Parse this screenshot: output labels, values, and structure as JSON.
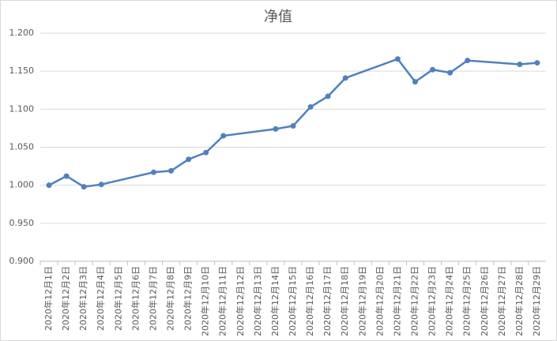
{
  "chart_data": {
    "type": "line",
    "title": "净值",
    "xticks": [
      "2020年12月1日",
      "2020年12月2日",
      "2020年12月3日",
      "2020年12月4日",
      "2020年12月5日",
      "2020年12月6日",
      "2020年12月7日",
      "2020年12月8日",
      "2020年12月9日",
      "2020年12月10日",
      "2020年12月11日",
      "2020年12月12日",
      "2020年12月13日",
      "2020年12月14日",
      "2020年12月15日",
      "2020年12月16日",
      "2020年12月17日",
      "2020年12月18日",
      "2020年12月19日",
      "2020年12月20日",
      "2020年12月21日",
      "2020年12月22日",
      "2020年12月23日",
      "2020年12月24日",
      "2020年12月25日",
      "2020年12月26日",
      "2020年12月27日",
      "2020年12月28日",
      "2020年12月29日"
    ],
    "x": [
      "2020年12月1日",
      "2020年12月2日",
      "2020年12月3日",
      "2020年12月4日",
      "2020年12月7日",
      "2020年12月8日",
      "2020年12月9日",
      "2020年12月10日",
      "2020年12月11日",
      "2020年12月14日",
      "2020年12月15日",
      "2020年12月16日",
      "2020年12月17日",
      "2020年12月18日",
      "2020年12月21日",
      "2020年12月22日",
      "2020年12月23日",
      "2020年12月24日",
      "2020年12月25日",
      "2020年12月28日",
      "2020年12月29日"
    ],
    "values": [
      1.0,
      1.012,
      0.998,
      1.001,
      1.017,
      1.019,
      1.034,
      1.043,
      1.065,
      1.074,
      1.078,
      1.103,
      1.117,
      1.141,
      1.166,
      1.136,
      1.152,
      1.148,
      1.164,
      1.159,
      1.161
    ],
    "color": "#4f81bd",
    "ylim": [
      0.9,
      1.2
    ],
    "yticks": [
      {
        "value": 0.9,
        "label": "0.900"
      },
      {
        "value": 0.95,
        "label": "0.950"
      },
      {
        "value": 1.0,
        "label": "1.000"
      },
      {
        "value": 1.05,
        "label": "1.050"
      },
      {
        "value": 1.1,
        "label": "1.100"
      },
      {
        "value": 1.15,
        "label": "1.150"
      },
      {
        "value": 1.2,
        "label": "1.200"
      }
    ],
    "grid": true
  }
}
